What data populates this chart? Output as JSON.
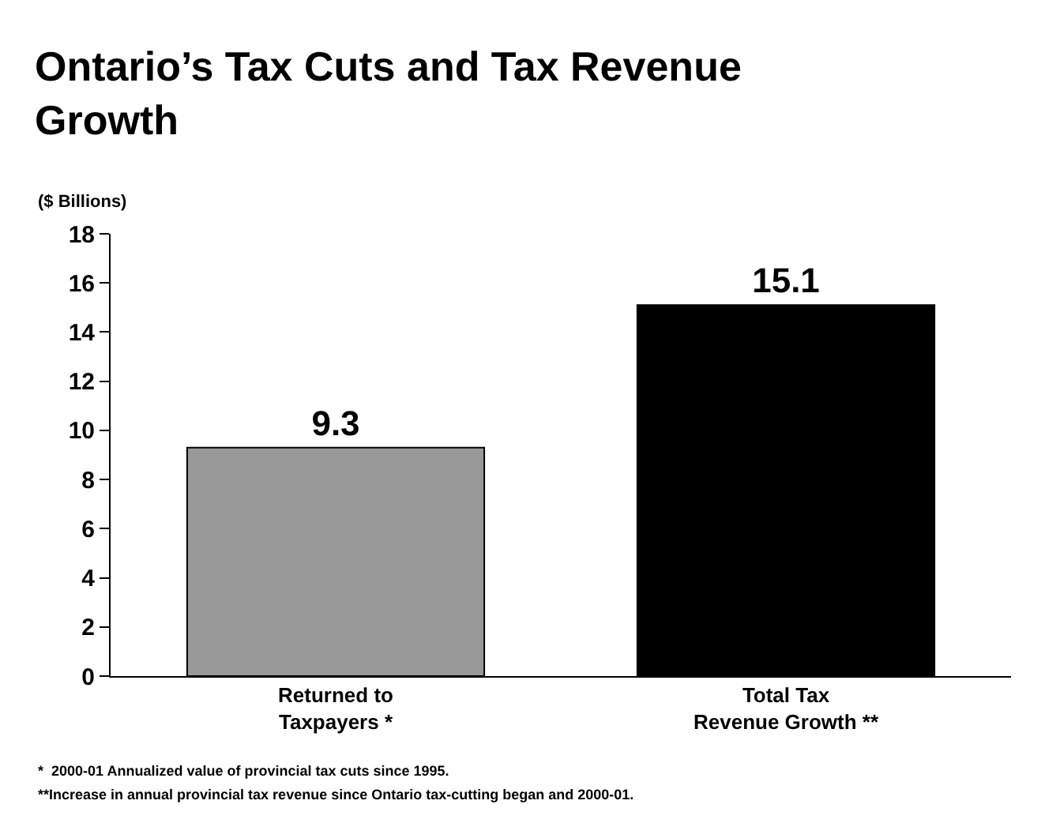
{
  "chart_data": {
    "type": "bar",
    "title": "Ontario’s Tax Cuts and Tax Revenue\nGrowth",
    "ylabel": "($ Billions)",
    "categories": [
      "Returned to\nTaxpayers *",
      "Total Tax\nRevenue Growth **"
    ],
    "values": [
      9.3,
      15.1
    ],
    "colors": [
      "#999999",
      "#000000"
    ],
    "ylim": [
      0,
      18
    ],
    "yticks": [
      0,
      2,
      4,
      6,
      8,
      10,
      12,
      14,
      16,
      18
    ],
    "data_labels": true,
    "legend": false,
    "annotations": [
      "*  2000-01 Annualized value of provincial tax cuts since 1995.",
      "**Increase in annual provincial tax revenue since Ontario tax-cutting began and 2000-01."
    ]
  }
}
